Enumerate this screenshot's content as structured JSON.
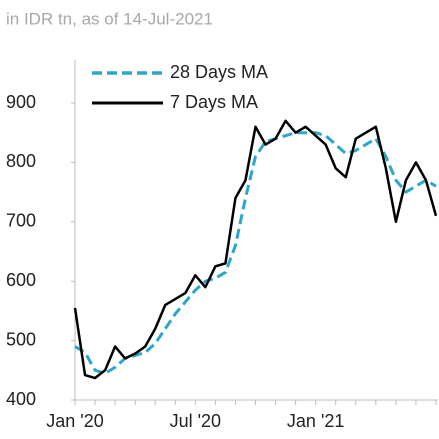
{
  "chart_data": {
    "type": "line",
    "subtitle": "in IDR tn, as of 14-Jul-2021",
    "categories": [
      "Jan '20",
      null,
      null,
      null,
      null,
      null,
      null,
      null,
      null,
      null,
      null,
      null,
      "Jul '20",
      null,
      null,
      null,
      null,
      null,
      null,
      null,
      null,
      null,
      null,
      null,
      "Jan '21",
      null,
      null,
      null,
      null,
      null,
      null,
      null,
      null,
      null,
      null,
      null,
      null
    ],
    "series": [
      {
        "name": "28 Days MA",
        "color": "#2aa7c9",
        "dash": true,
        "values": [
          490,
          480,
          450,
          445,
          455,
          470,
          475,
          480,
          495,
          520,
          545,
          565,
          585,
          600,
          605,
          615,
          660,
          740,
          810,
          835,
          840,
          845,
          850,
          850,
          850,
          845,
          830,
          815,
          820,
          830,
          840,
          810,
          770,
          750,
          760,
          770,
          760
        ]
      },
      {
        "name": "7 Days MA",
        "color": "#000000",
        "dash": false,
        "values": [
          555,
          442,
          437,
          450,
          490,
          470,
          478,
          490,
          520,
          560,
          570,
          580,
          610,
          590,
          625,
          630,
          740,
          770,
          860,
          830,
          840,
          870,
          850,
          860,
          845,
          830,
          790,
          775,
          840,
          850,
          860,
          790,
          700,
          770,
          800,
          770,
          710
        ]
      }
    ],
    "ylim": [
      400,
      900
    ],
    "yticks": [
      400,
      500,
      600,
      700,
      800,
      900
    ],
    "grid": false
  }
}
